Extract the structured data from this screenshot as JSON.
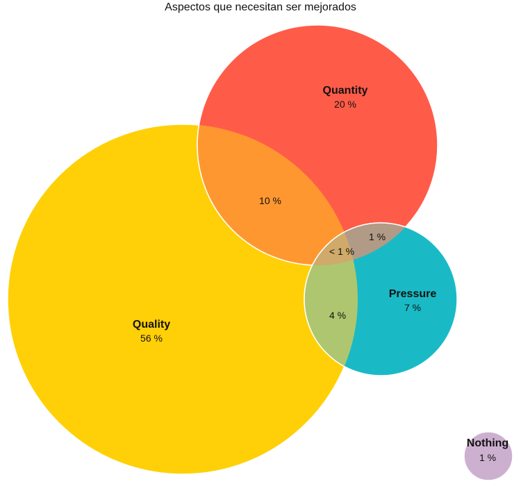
{
  "chart_data": {
    "type": "venn",
    "title": "Aspectos que necesitan ser mejorados",
    "sets": [
      {
        "id": "quality",
        "name": "Quality",
        "value_label": "56 %",
        "value": 56,
        "color": "#FFD007"
      },
      {
        "id": "quantity",
        "name": "Quantity",
        "value_label": "20 %",
        "value": 20,
        "color": "#FF5B49"
      },
      {
        "id": "pressure",
        "name": "Pressure",
        "value_label": "7 %",
        "value": 7,
        "color": "#19BAC6"
      },
      {
        "id": "nothing",
        "name": "Nothing",
        "value_label": "1 %",
        "value": 1,
        "color": "#CDB0D0"
      }
    ],
    "overlaps": [
      {
        "id": "quality-quantity",
        "sets": [
          "quality",
          "quantity"
        ],
        "value_label": "10 %",
        "value": 10,
        "color": "#FF9730"
      },
      {
        "id": "quantity-pressure",
        "sets": [
          "quantity",
          "pressure"
        ],
        "value_label": "1 %",
        "value": 1,
        "color": "#B19B86"
      },
      {
        "id": "quality-pressure",
        "sets": [
          "quality",
          "pressure"
        ],
        "value_label": "4 %",
        "value": 4,
        "color": "#AEC66F"
      },
      {
        "id": "quality-quantity-pressure",
        "sets": [
          "quality",
          "quantity",
          "pressure"
        ],
        "value_label": "< 1 %",
        "value": 0.5,
        "color": "#CFAA6A"
      }
    ]
  }
}
